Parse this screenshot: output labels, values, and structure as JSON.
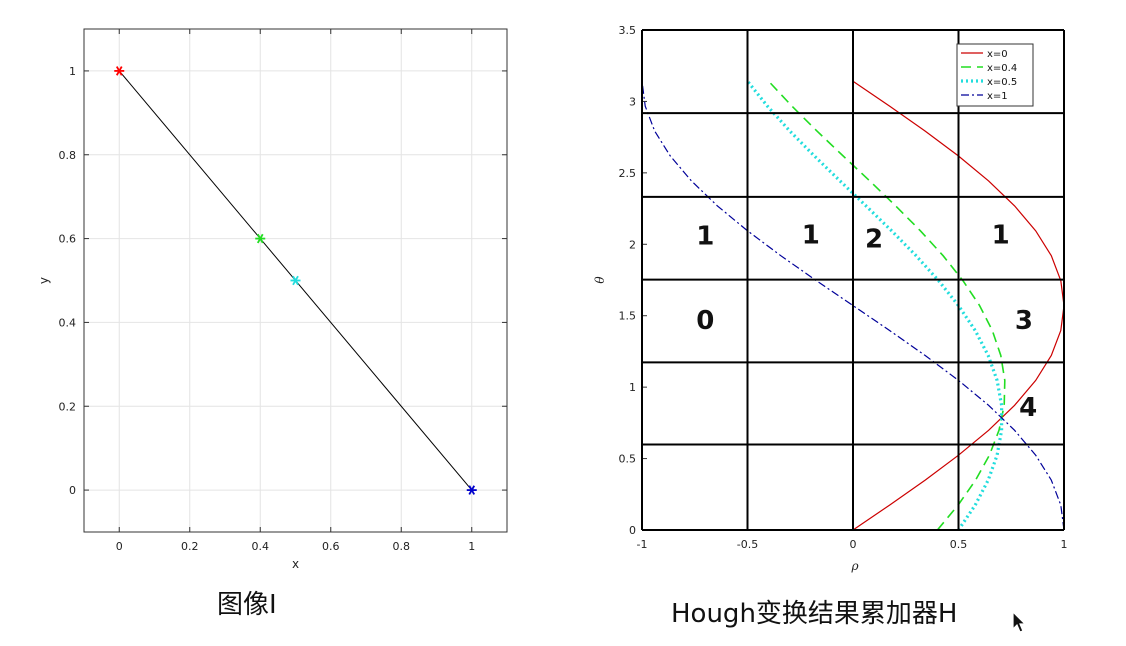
{
  "captions": {
    "left": "图像I",
    "right": "Hough变换结果累加器H"
  },
  "chart_data": [
    {
      "type": "line",
      "xlabel": "x",
      "ylabel": "y",
      "xlim": [
        -0.1,
        1.1
      ],
      "ylim": [
        -0.1,
        1.1
      ],
      "xticks": [
        0,
        0.2,
        0.4,
        0.6,
        0.8,
        1
      ],
      "yticks": [
        0,
        0.2,
        0.4,
        0.6,
        0.8,
        1
      ],
      "xtick_labels": [
        "0",
        "0.2",
        "0.4",
        "0.6",
        "0.8",
        "1"
      ],
      "ytick_labels": [
        "0",
        "0.2",
        "0.4",
        "0.6",
        "0.8",
        "1"
      ],
      "grid": true,
      "line": {
        "x": [
          0,
          1
        ],
        "y": [
          1,
          0
        ],
        "color": "#000000"
      },
      "points": [
        {
          "x": 0,
          "y": 1,
          "color": "#ff0000"
        },
        {
          "x": 0.4,
          "y": 0.6,
          "color": "#22dd22"
        },
        {
          "x": 0.5,
          "y": 0.5,
          "color": "#22dddd"
        },
        {
          "x": 1,
          "y": 0,
          "color": "#0000cc"
        }
      ]
    },
    {
      "type": "line",
      "xlabel": "ρ",
      "ylabel": "θ",
      "xlim": [
        -1,
        1
      ],
      "ylim": [
        0,
        3.5
      ],
      "xticks": [
        -1,
        -0.5,
        0,
        0.5,
        1
      ],
      "yticks": [
        0,
        0.5,
        1,
        1.5,
        2,
        2.5,
        3,
        3.5
      ],
      "xtick_labels": [
        "-1",
        "-0.5",
        "0",
        "0.5",
        "1"
      ],
      "ytick_labels": [
        "0",
        "0.5",
        "1",
        "1.5",
        "2",
        "2.5",
        "3",
        "3.5"
      ],
      "legend_position": "top-right",
      "series": [
        {
          "name": "x=0",
          "x0": 0,
          "color": "#cc0000",
          "style": "solid"
        },
        {
          "name": "x=0.4",
          "x0": 0.4,
          "color": "#22dd22",
          "style": "dashed"
        },
        {
          "name": "x=0.5",
          "x0": 0.5,
          "color": "#22dddd",
          "style": "dotted"
        },
        {
          "name": "x=1",
          "x0": 1,
          "color": "#000099",
          "style": "dashdot"
        }
      ],
      "accumulator_grid": {
        "rho_edges": [
          -1,
          -0.5,
          0,
          0.5,
          1
        ],
        "theta_edges": [
          0,
          0.5985,
          1.1736,
          1.7527,
          2.3322,
          2.9178,
          3.5
        ],
        "cells": [
          {
            "rho": -0.7,
            "theta": 1.47,
            "value": "0"
          },
          {
            "rho": -0.7,
            "theta": 2.06,
            "value": "1"
          },
          {
            "rho": -0.2,
            "theta": 2.07,
            "value": "1"
          },
          {
            "rho": 0.1,
            "theta": 2.04,
            "value": "2"
          },
          {
            "rho": 0.7,
            "theta": 2.07,
            "value": "1"
          },
          {
            "rho": 0.81,
            "theta": 1.47,
            "value": "3"
          },
          {
            "rho": 0.83,
            "theta": 0.86,
            "value": "4"
          }
        ]
      }
    }
  ]
}
